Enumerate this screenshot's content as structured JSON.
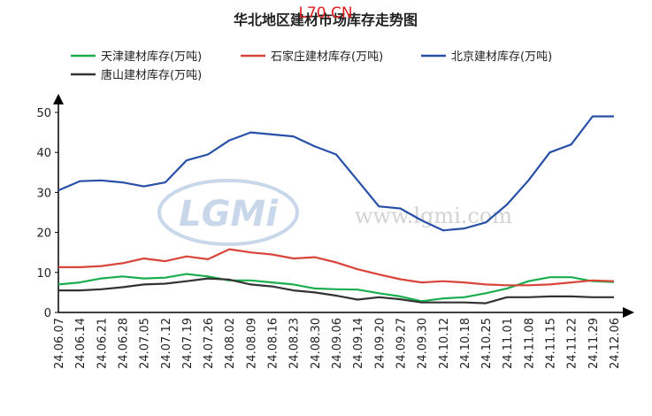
{
  "chart_data": {
    "type": "line",
    "title": "华北地区建材市场库存走势图",
    "watermarks": [
      "L70.CN",
      "LGMi",
      "www.lgmi.com"
    ],
    "categories": [
      "24.06.07",
      "24.06.14",
      "24.06.21",
      "24.06.28",
      "24.07.05",
      "24.07.12",
      "24.07.19",
      "24.07.26",
      "24.08.02",
      "24.08.09",
      "24.08.16",
      "24.08.23",
      "24.08.30",
      "24.09.06",
      "24.09.14",
      "24.09.20",
      "24.09.27",
      "24.09.30",
      "24.10.12",
      "24.10.18",
      "24.10.25",
      "24.11.01",
      "24.11.08",
      "24.11.15",
      "24.11.22",
      "24.11.29",
      "24.12.06"
    ],
    "series": [
      {
        "name": "天津建材库存(万吨)",
        "color": "#1aae4e",
        "values": [
          7,
          7.5,
          8.5,
          9,
          8.5,
          8.7,
          9.6,
          9,
          8,
          8,
          7.5,
          7,
          6,
          5.8,
          5.7,
          4.8,
          4,
          2.8,
          3.5,
          3.8,
          4.8,
          6,
          7.8,
          8.8,
          8.8,
          7.8,
          7.6
        ]
      },
      {
        "name": "石家庄建材库存(万吨)",
        "color": "#d9453a",
        "values": [
          11.3,
          11.3,
          11.6,
          12.3,
          13.5,
          12.8,
          14,
          13.3,
          15.8,
          15,
          14.5,
          13.5,
          13.8,
          12.5,
          10.8,
          9.5,
          8.3,
          7.5,
          7.8,
          7.5,
          7,
          6.8,
          6.8,
          7,
          7.5,
          8,
          7.8
        ]
      },
      {
        "name": "北京建材库存(万吨)",
        "color": "#2850a8",
        "values": [
          30.5,
          32.8,
          33,
          32.5,
          31.5,
          32.5,
          38,
          39.5,
          43,
          45,
          44.5,
          44,
          41.5,
          39.5,
          33,
          26.5,
          26,
          23,
          20.5,
          21,
          22.5,
          27,
          33,
          40,
          42,
          49,
          49
        ]
      },
      {
        "name": "唐山建材库存(万吨)",
        "color": "#333333",
        "values": [
          5.5,
          5.5,
          5.8,
          6.3,
          7,
          7.2,
          7.8,
          8.5,
          8.2,
          7,
          6.5,
          5.5,
          5,
          4.2,
          3.2,
          3.8,
          3.3,
          2.5,
          2.5,
          2.5,
          2.3,
          3.8,
          3.8,
          4,
          4,
          3.8,
          3.8
        ]
      }
    ],
    "ylim": [
      0,
      50
    ],
    "yticks": [
      0,
      10,
      20,
      30,
      40,
      50
    ]
  }
}
